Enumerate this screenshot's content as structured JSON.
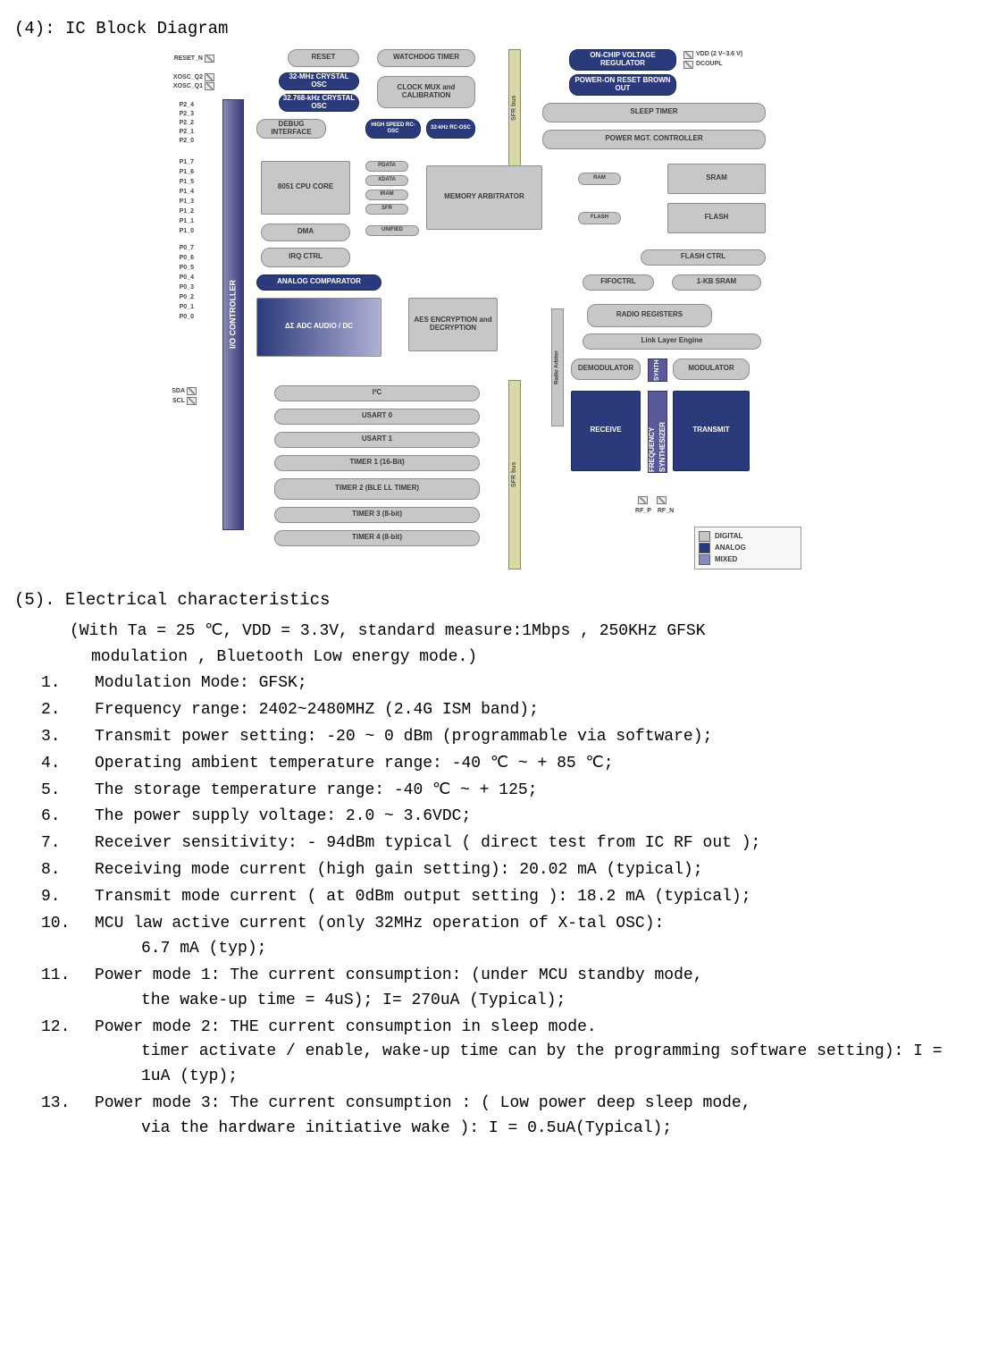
{
  "section4_title": "(4): IC Block Diagram",
  "diagram": {
    "pins_left_top": [
      "RESET_N"
    ],
    "pins_left_xosc": [
      "XOSC_Q2",
      "XOSC_Q1"
    ],
    "pins_left_p2": [
      "P2_4",
      "P2_3",
      "P2_2",
      "P2_1",
      "P2_0"
    ],
    "pins_left_p1": [
      "P1_7",
      "P1_6",
      "P1_5",
      "P1_4",
      "P1_3",
      "P1_2",
      "P1_1",
      "P1_0"
    ],
    "pins_left_p0": [
      "P0_7",
      "P0_6",
      "P0_5",
      "P0_4",
      "P0_3",
      "P0_2",
      "P0_1",
      "P0_0"
    ],
    "pins_left_i2c": [
      "SDA",
      "SCL"
    ],
    "pins_top_right": [
      "VDD (2 V–3.6 V)",
      "DCOUPL"
    ],
    "pins_bottom_rf": [
      "RF_P",
      "RF_N"
    ],
    "io_controller": "I/O CONTROLLER",
    "sfr_bus": "SFR bus",
    "radio_arbiter": "Radio Arbiter",
    "blocks": {
      "reset": "RESET",
      "watchdog": "WATCHDOG TIMER",
      "osc32m": "32-MHz CRYSTAL OSC",
      "osc32k": "32.768-kHz CRYSTAL OSC",
      "clkmux": "CLOCK MUX and CALIBRATION",
      "debug": "DEBUG INTERFACE",
      "hsrc": "HIGH SPEED RC-OSC",
      "rc32k": "32-kHz RC-OSC",
      "onchipreg": "ON-CHIP VOLTAGE REGULATOR",
      "por": "POWER-ON RESET BROWN OUT",
      "sleeptimer": "SLEEP TIMER",
      "pmc": "POWER MGT. CONTROLLER",
      "cpu": "8051 CPU CORE",
      "dma": "DMA",
      "irq": "IRQ CTRL",
      "memarb": "MEMORY ARBITRATOR",
      "pdata": "PDATA",
      "xdata": "XDATA",
      "iram": "IRAM",
      "sfr": "SFR",
      "unified": "UNIFIED",
      "ram": "RAM",
      "sram": "SRAM",
      "flash_txt": "FLASH",
      "flash_blk": "FLASH",
      "flashctrl": "FLASH CTRL",
      "analogcomp": "ANALOG COMPARATOR",
      "adc": "ΔΣ ADC AUDIO / DC",
      "aes": "AES ENCRYPTION and DECRYPTION",
      "fifoctrl": "FIFOCTRL",
      "kb1sram": "1-KB SRAM",
      "radioreg": "RADIO REGISTERS",
      "lle": "Link Layer Engine",
      "demod": "DEMODULATOR",
      "synth_small": "SYNTH",
      "modulator": "MODULATOR",
      "receive": "RECEIVE",
      "freqsyn": "FREQUENCY SYNTHESIZER",
      "transmit": "TRANSMIT",
      "i2c": "I²C",
      "usart0": "USART 0",
      "usart1": "USART 1",
      "timer1": "TIMER 1 (16-Bit)",
      "timer2": "TIMER 2 (BLE LL TIMER)",
      "timer3": "TIMER 3 (8-bit)",
      "timer4": "TIMER 4 (8-bit)"
    },
    "legend": {
      "digital": "DIGITAL",
      "analog": "ANALOG",
      "mixed": "MIXED"
    },
    "colors": {
      "digital_block": "#c5c7c9",
      "analog_block": "#2b3a7a",
      "mixed_block": "#8a8ac0",
      "bus": "#d7d9a8",
      "io_bar_top": "#3a3a7a",
      "io_bar_bottom": "#8a8ab8",
      "border": "#8e8e8e",
      "text": "#3a3a3a",
      "bg": "#ffffff"
    }
  },
  "section5_title": "(5). Electrical characteristics",
  "section5_note_line1": "(With Ta = 25 ℃, VDD = 3.3V, standard measure:1Mbps , 250KHz GFSK",
  "section5_note_line2": "modulation ,  Bluetooth Low energy mode.)",
  "ec": [
    {
      "n": "1.",
      "t": "Modulation Mode: GFSK;"
    },
    {
      "n": "2.",
      "t": "Frequency range: 2402~2480MHZ (2.4G ISM band);"
    },
    {
      "n": "3.",
      "t": "Transmit power setting: -20 ~ 0 dBm (programmable via software);"
    },
    {
      "n": "4.",
      "t": "Operating ambient temperature range: -40 ℃ ~ + 85 ℃;"
    },
    {
      "n": "5.",
      "t": "The storage temperature range: -40 ℃ ~ + 125;"
    },
    {
      "n": "6.",
      "t": "The power supply voltage: 2.0 ~ 3.6VDC;"
    },
    {
      "n": "7.",
      "t": "Receiver sensitivity: - 94dBm typical ( direct test from IC RF out );"
    },
    {
      "n": "8.",
      "t": "Receiving mode current (high gain setting): 20.02 mA (typical);"
    },
    {
      "n": "9.",
      "t": "Transmit mode current ( at 0dBm output setting ): 18.2 mA (typical);"
    },
    {
      "n": "10.",
      "t": "MCU law active current (only 32MHz operation of X-tal OSC):",
      "sub": "6.7 mA (typ);"
    },
    {
      "n": "11.",
      "t": "Power mode 1: The current consumption: (under MCU standby mode,",
      "sub": "the wake-up time = 4uS); I= 270uA (Typical);"
    },
    {
      "n": "12.",
      "t": "Power mode 2: THE current consumption in sleep mode.",
      "sub": "timer activate / enable, wake-up time can by the programming software setting): I = 1uA (typ);"
    },
    {
      "n": "13.",
      "t": "Power mode 3: The current consumption : ( Low power deep sleep mode,",
      "sub": "via the hardware initiative wake ): I = 0.5uA(Typical);"
    }
  ]
}
